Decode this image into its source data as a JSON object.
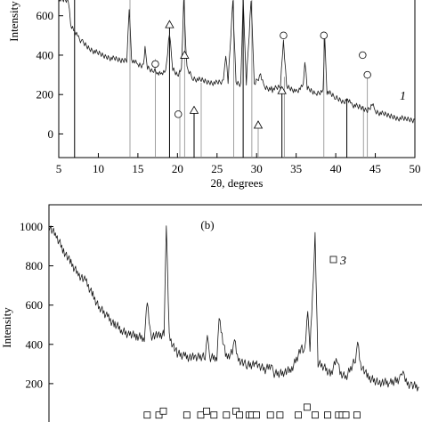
{
  "chart_data": [
    {
      "type": "line",
      "panel": "a",
      "xlabel": "2θ, degrees",
      "ylabel": "Intensity",
      "xlim": [
        5,
        50
      ],
      "ylim": [
        -120,
        680
      ],
      "x_ticks": [
        5,
        10,
        15,
        20,
        25,
        30,
        35,
        40,
        45,
        50
      ],
      "y_ticks": [
        0,
        200,
        400,
        600
      ],
      "curve_label": "1",
      "series": [
        {
          "points": [
            [
              5.0,
              680
            ],
            [
              6.2,
              680
            ],
            [
              6.5,
              560
            ],
            [
              7.0,
              520
            ],
            [
              7.5,
              490
            ],
            [
              8,
              465
            ],
            [
              9,
              430
            ],
            [
              10,
              408
            ],
            [
              11,
              392
            ],
            [
              12,
              380
            ],
            [
              13,
              372
            ],
            [
              13.6,
              378
            ],
            [
              13.9,
              640
            ],
            [
              14.2,
              380
            ],
            [
              15,
              350
            ],
            [
              15.7,
              345
            ],
            [
              15.9,
              430
            ],
            [
              16.2,
              340
            ],
            [
              17,
              318
            ],
            [
              17.5,
              312
            ],
            [
              18,
              305
            ],
            [
              18.5,
              310
            ],
            [
              19.0,
              520
            ],
            [
              19.4,
              330
            ],
            [
              20.0,
              300
            ],
            [
              20.5,
              330
            ],
            [
              20.8,
              680
            ],
            [
              21.2,
              330
            ],
            [
              22,
              282
            ],
            [
              23,
              272
            ],
            [
              24,
              262
            ],
            [
              25,
              258
            ],
            [
              25.8,
              262
            ],
            [
              26.1,
              410
            ],
            [
              26.4,
              265
            ],
            [
              27.0,
              680
            ],
            [
              27.4,
              260
            ],
            [
              28.0,
              250
            ],
            [
              28.3,
              680
            ],
            [
              28.7,
              260
            ],
            [
              29.3,
              680
            ],
            [
              29.7,
              255
            ],
            [
              30.5,
              300
            ],
            [
              30.9,
              240
            ],
            [
              32,
              225
            ],
            [
              33.0,
              240
            ],
            [
              33.4,
              480
            ],
            [
              33.8,
              240
            ],
            [
              35,
              218
            ],
            [
              35.9,
              240
            ],
            [
              36.1,
              375
            ],
            [
              36.4,
              230
            ],
            [
              37.5,
              205
            ],
            [
              38.4,
              220
            ],
            [
              38.6,
              490
            ],
            [
              38.9,
              215
            ],
            [
              40,
              185
            ],
            [
              41,
              165
            ],
            [
              41.5,
              175
            ],
            [
              42,
              150
            ],
            [
              43,
              135
            ],
            [
              44,
              120
            ],
            [
              44.6,
              150
            ],
            [
              45,
              115
            ],
            [
              46,
              100
            ],
            [
              47,
              90
            ],
            [
              48,
              80
            ],
            [
              49,
              75
            ],
            [
              50,
              70
            ]
          ]
        }
      ],
      "reference_lines": [
        7.0,
        14.0,
        17.2,
        19.0,
        20.3,
        20.9,
        22.1,
        23.0,
        27.1,
        28.3,
        29.4,
        30.2,
        33.2,
        33.5,
        38.5,
        41.4,
        43.5,
        44.0
      ],
      "triangle_markers": [
        [
          19.0,
          555
        ],
        [
          20.9,
          400
        ],
        [
          22.1,
          120
        ],
        [
          30.2,
          45
        ],
        [
          33.2,
          220
        ]
      ],
      "circle_markers": [
        [
          17.2,
          355
        ],
        [
          20.1,
          100
        ],
        [
          33.4,
          500
        ],
        [
          38.5,
          500
        ],
        [
          43.4,
          400
        ],
        [
          44.0,
          300
        ]
      ]
    },
    {
      "type": "line",
      "panel": "b",
      "panel_title": "(b)",
      "ylabel": "Intensity",
      "ylim": [
        0,
        1090
      ],
      "y_ticks": [
        200,
        400,
        600,
        800,
        1000
      ],
      "legend_label": "3",
      "series": [
        {
          "points": [
            [
              0,
              1000
            ],
            [
              1,
              950
            ],
            [
              2,
              880
            ],
            [
              3,
              810
            ],
            [
              4,
              760
            ],
            [
              5,
              720
            ],
            [
              6,
              650
            ],
            [
              7,
              580
            ],
            [
              8,
              540
            ],
            [
              9,
              500
            ],
            [
              10,
              470
            ],
            [
              11,
              450
            ],
            [
              12,
              440
            ],
            [
              13,
              438
            ],
            [
              13.4,
              620
            ],
            [
              13.9,
              445
            ],
            [
              15,
              440
            ],
            [
              15.7,
              455
            ],
            [
              16.0,
              1000
            ],
            [
              16.4,
              440
            ],
            [
              17.5,
              350
            ],
            [
              18.5,
              340
            ],
            [
              20,
              330
            ],
            [
              21.3,
              340
            ],
            [
              21.6,
              450
            ],
            [
              21.9,
              330
            ],
            [
              22.9,
              340
            ],
            [
              23.2,
              540
            ],
            [
              23.6,
              450
            ],
            [
              24.2,
              330
            ],
            [
              25,
              360
            ],
            [
              25.3,
              420
            ],
            [
              25.7,
              330
            ],
            [
              27,
              290
            ],
            [
              28.2,
              300
            ],
            [
              28.7,
              285
            ],
            [
              29.5,
              270
            ],
            [
              30.3,
              300
            ],
            [
              30.6,
              250
            ],
            [
              32,
              260
            ],
            [
              33,
              265
            ],
            [
              34.5,
              390
            ],
            [
              34.9,
              360
            ],
            [
              35.3,
              580
            ],
            [
              35.6,
              360
            ],
            [
              36.3,
              950
            ],
            [
              36.7,
              300
            ],
            [
              37.5,
              285
            ],
            [
              38.5,
              250
            ],
            [
              39.3,
              330
            ],
            [
              39.7,
              250
            ],
            [
              40.5,
              230
            ],
            [
              41.8,
              330
            ],
            [
              42.1,
              420
            ],
            [
              42.5,
              300
            ],
            [
              43.5,
              230
            ],
            [
              45,
              210
            ],
            [
              46.5,
              200
            ],
            [
              48.0,
              230
            ],
            [
              48.3,
              280
            ],
            [
              48.6,
              210
            ],
            [
              49.5,
              190
            ],
            [
              50.5,
              180
            ]
          ]
        }
      ],
      "square_markers": [
        [
          13.4,
          20
        ],
        [
          15.0,
          20
        ],
        [
          15.6,
          40
        ],
        [
          18.8,
          20
        ],
        [
          20.7,
          20
        ],
        [
          21.5,
          40
        ],
        [
          22.5,
          20
        ],
        [
          24.2,
          20
        ],
        [
          25.5,
          40
        ],
        [
          26.0,
          20
        ],
        [
          27.3,
          20
        ],
        [
          27.7,
          20
        ],
        [
          28.3,
          20
        ],
        [
          30.2,
          20
        ],
        [
          31.5,
          20
        ],
        [
          34.0,
          20
        ],
        [
          35.2,
          60
        ],
        [
          36.3,
          20
        ],
        [
          38.0,
          20
        ],
        [
          39.5,
          20
        ],
        [
          40.0,
          20
        ],
        [
          40.5,
          20
        ],
        [
          42.0,
          20
        ]
      ]
    }
  ]
}
